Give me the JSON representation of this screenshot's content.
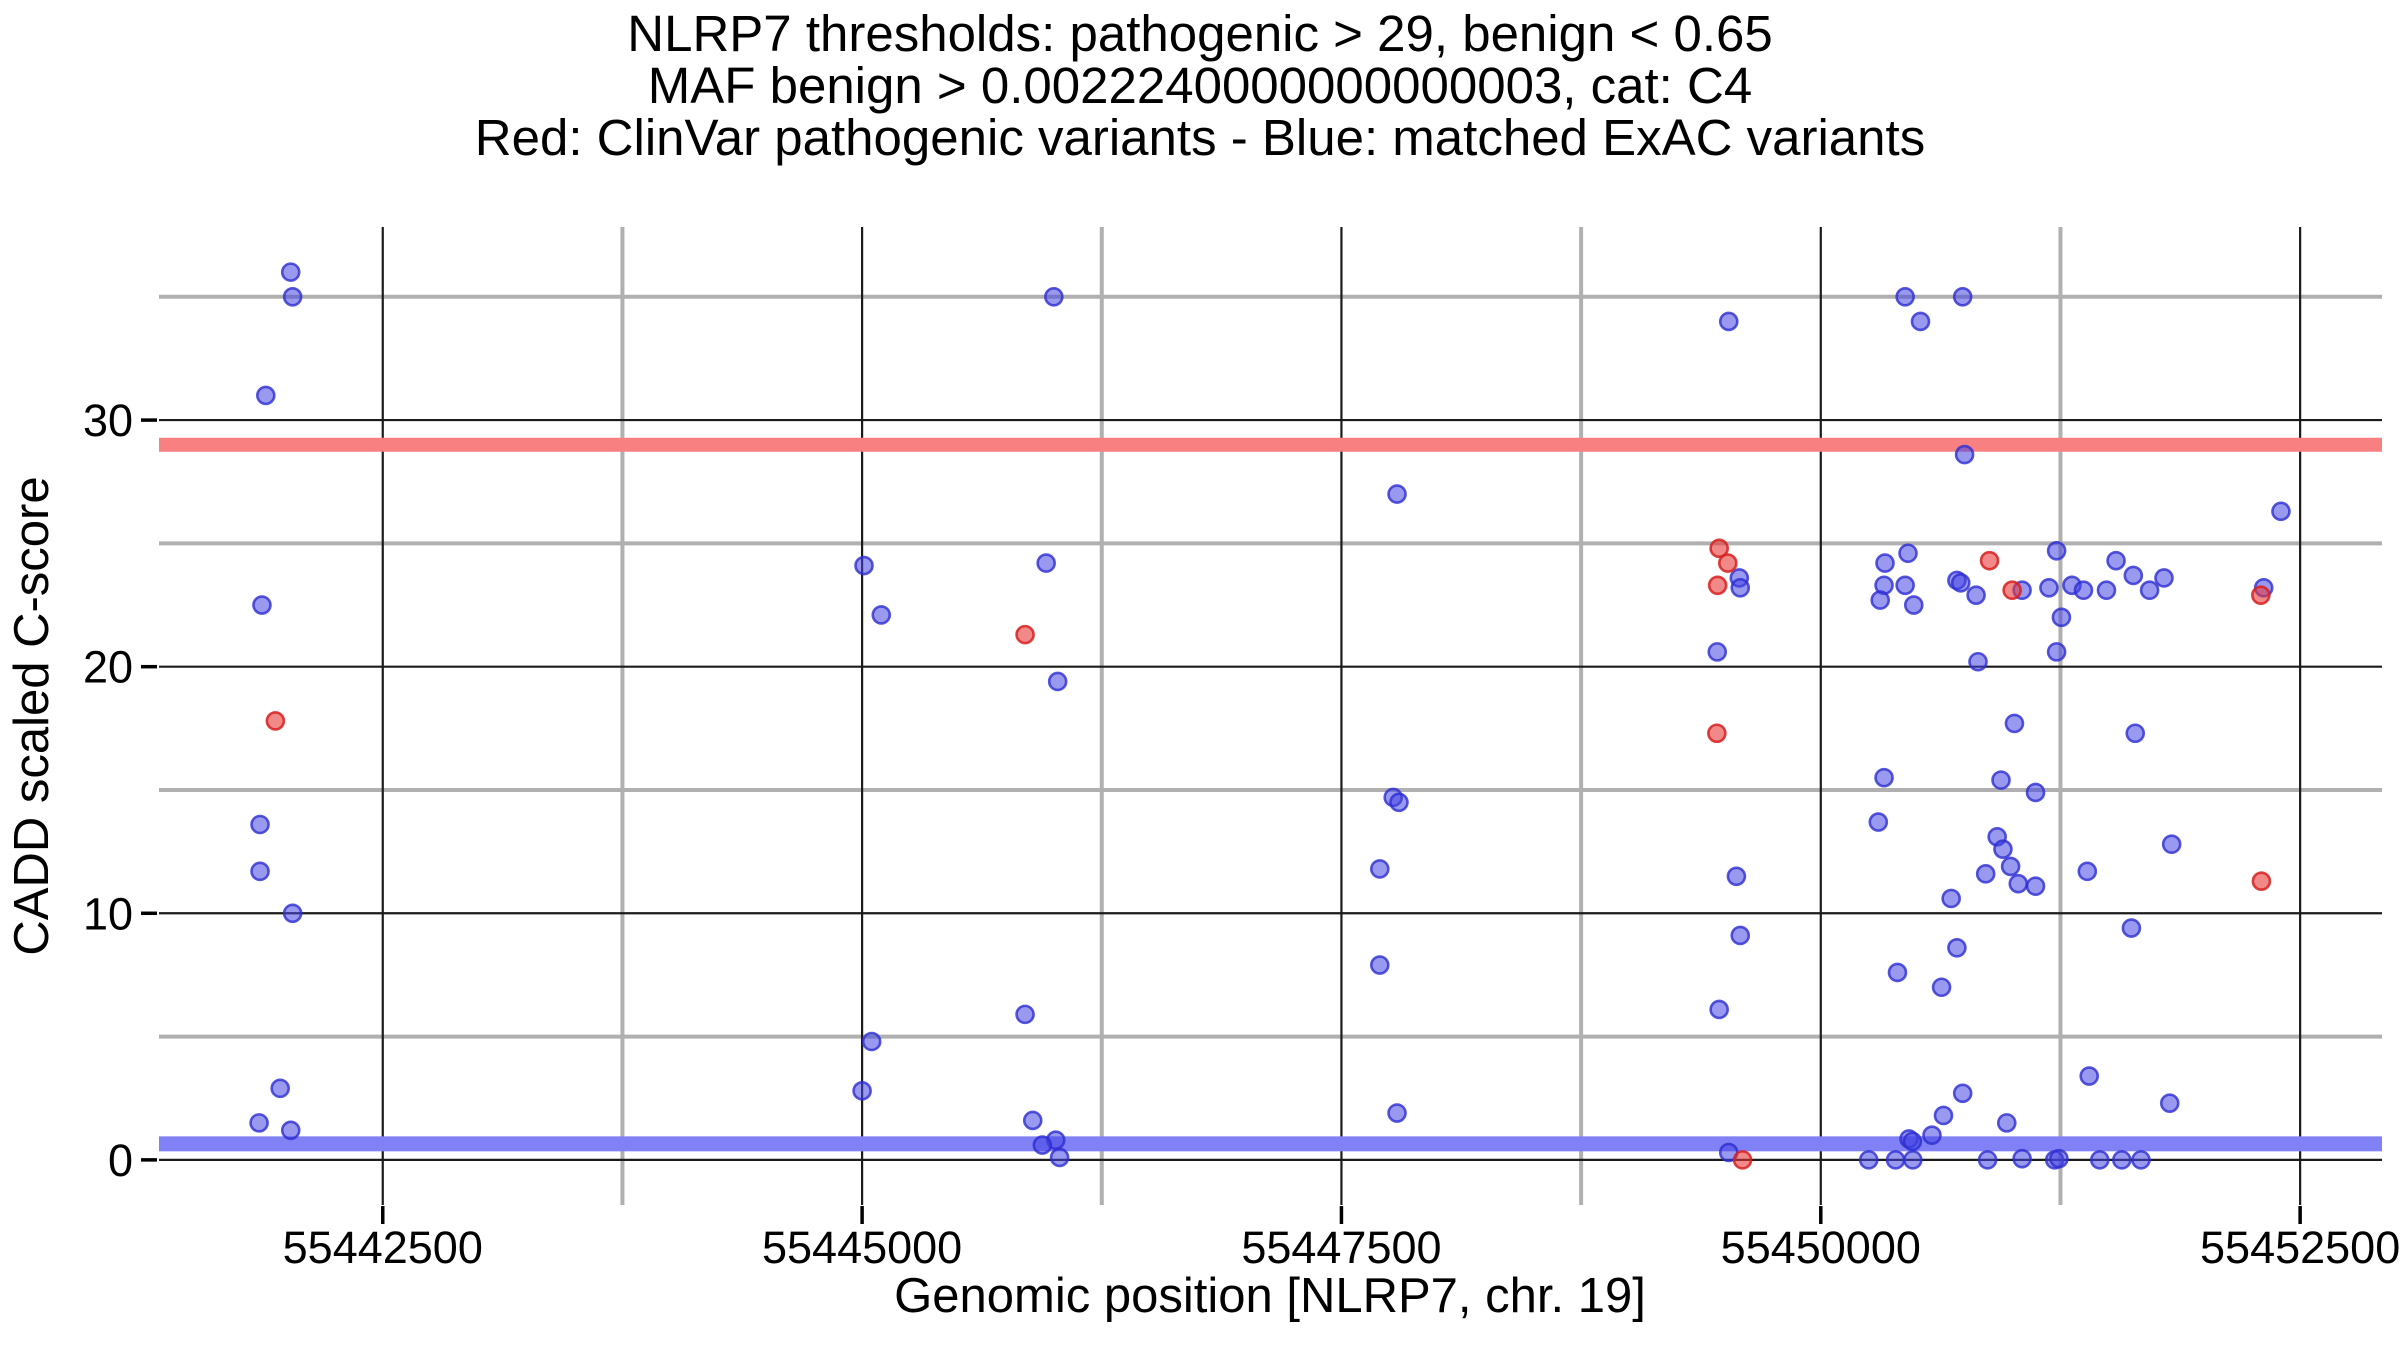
{
  "chart_data": {
    "type": "scatter",
    "title_line1": "NLRP7 thresholds: pathogenic > 29, benign < 0.65",
    "title_line2": "MAF benign > 0.0022240000000000003, cat: C4",
    "title_line3": "Red: ClinVar pathogenic variants - Blue: matched ExAC variants",
    "xlabel": "Genomic position [NLRP7, chr. 19]",
    "ylabel": "CADD scaled C-score",
    "xlim": [
      55441333,
      55452927
    ],
    "ylim": [
      -1.83,
      37.83
    ],
    "x_ticks": [
      55442500,
      55445000,
      55447500,
      55450000,
      55452500
    ],
    "x_minor_ticks": [
      55443750,
      55446250,
      55448750,
      55451250
    ],
    "y_ticks": [
      0,
      10,
      20,
      30
    ],
    "y_minor_ticks": [
      5,
      15,
      25,
      35
    ],
    "grid": true,
    "legend_position": "none",
    "thresholds": {
      "pathogenic_line": 29,
      "benign_line": 0.65
    },
    "colors": {
      "red_band": "#f88080",
      "blue_band": "#8181f6",
      "blue_fill": "rgba(70,70,228,0.55)",
      "blue_stroke": "rgba(45,45,210,0.8)",
      "red_fill": "rgba(232,58,58,0.6)",
      "red_stroke": "rgba(215,32,32,0.85)",
      "major_grid": "#1b1b1b",
      "minor_grid": "#b0b0b0"
    },
    "series": [
      {
        "name": "matched ExAC variants",
        "color": "blue",
        "points": [
          [
            55442020,
            36.0
          ],
          [
            55442030,
            35.0
          ],
          [
            55441890,
            31.0
          ],
          [
            55441870,
            22.5
          ],
          [
            55441860,
            13.6
          ],
          [
            55441860,
            11.7
          ],
          [
            55442030,
            10.0
          ],
          [
            55441965,
            2.9
          ],
          [
            55441855,
            1.5
          ],
          [
            55442020,
            1.2
          ],
          [
            55445010,
            24.1
          ],
          [
            55445960,
            24.2
          ],
          [
            55446000,
            35.0
          ],
          [
            55445100,
            22.1
          ],
          [
            55446020,
            19.4
          ],
          [
            55445850,
            5.9
          ],
          [
            55445050,
            4.8
          ],
          [
            55445000,
            2.8
          ],
          [
            55445890,
            1.6
          ],
          [
            55446010,
            0.8
          ],
          [
            55445940,
            0.6
          ],
          [
            55446030,
            0.1
          ],
          [
            55447790,
            27.0
          ],
          [
            55447770,
            14.7
          ],
          [
            55447800,
            14.5
          ],
          [
            55447700,
            11.8
          ],
          [
            55447700,
            7.9
          ],
          [
            55447790,
            1.9
          ],
          [
            55449520,
            34.0
          ],
          [
            55449575,
            23.6
          ],
          [
            55449580,
            23.2
          ],
          [
            55449460,
            20.6
          ],
          [
            55449560,
            11.5
          ],
          [
            55449580,
            9.1
          ],
          [
            55449470,
            6.1
          ],
          [
            55449520,
            0.3
          ],
          [
            55450440,
            35.0
          ],
          [
            55450740,
            35.0
          ],
          [
            55450520,
            34.0
          ],
          [
            55450750,
            28.6
          ],
          [
            55452400,
            26.3
          ],
          [
            55451230,
            24.7
          ],
          [
            55450455,
            24.6
          ],
          [
            55451540,
            24.3
          ],
          [
            55450335,
            24.2
          ],
          [
            55451630,
            23.7
          ],
          [
            55451790,
            23.6
          ],
          [
            55450710,
            23.5
          ],
          [
            55450730,
            23.4
          ],
          [
            55450330,
            23.3
          ],
          [
            55450440,
            23.3
          ],
          [
            55451310,
            23.3
          ],
          [
            55451190,
            23.2
          ],
          [
            55452310,
            23.2
          ],
          [
            55451050,
            23.1
          ],
          [
            55451370,
            23.1
          ],
          [
            55451490,
            23.1
          ],
          [
            55451715,
            23.1
          ],
          [
            55450810,
            22.9
          ],
          [
            55450310,
            22.7
          ],
          [
            55450485,
            22.5
          ],
          [
            55451255,
            22.0
          ],
          [
            55451230,
            20.6
          ],
          [
            55450820,
            20.2
          ],
          [
            55451010,
            17.7
          ],
          [
            55451640,
            17.3
          ],
          [
            55450330,
            15.5
          ],
          [
            55450940,
            15.4
          ],
          [
            55451120,
            14.9
          ],
          [
            55450300,
            13.7
          ],
          [
            55450920,
            13.1
          ],
          [
            55451830,
            12.8
          ],
          [
            55450950,
            12.6
          ],
          [
            55450990,
            11.9
          ],
          [
            55451390,
            11.7
          ],
          [
            55450860,
            11.6
          ],
          [
            55451030,
            11.2
          ],
          [
            55451120,
            11.1
          ],
          [
            55450680,
            10.6
          ],
          [
            55451620,
            9.4
          ],
          [
            55450710,
            8.6
          ],
          [
            55450400,
            7.6
          ],
          [
            55450630,
            7.0
          ],
          [
            55451400,
            3.4
          ],
          [
            55450740,
            2.7
          ],
          [
            55451820,
            2.3
          ],
          [
            55450640,
            1.8
          ],
          [
            55450970,
            1.5
          ],
          [
            55450580,
            1.0
          ],
          [
            55450460,
            0.85
          ],
          [
            55450478,
            0.75
          ],
          [
            55450250,
            0.0
          ],
          [
            55450390,
            0.0
          ],
          [
            55450480,
            0.0
          ],
          [
            55450870,
            0.0
          ],
          [
            55451050,
            0.05
          ],
          [
            55451220,
            0.0
          ],
          [
            55451242,
            0.05
          ],
          [
            55451455,
            0.0
          ],
          [
            55451570,
            0.0
          ],
          [
            55451670,
            0.0
          ]
        ]
      },
      {
        "name": "ClinVar pathogenic variants",
        "color": "red",
        "points": [
          [
            55441940,
            17.8
          ],
          [
            55445850,
            21.3
          ],
          [
            55449470,
            24.8
          ],
          [
            55449515,
            24.2
          ],
          [
            55449462,
            23.3
          ],
          [
            55449458,
            17.3
          ],
          [
            55449592,
            0.0
          ],
          [
            55450880,
            24.3
          ],
          [
            55450998,
            23.1
          ],
          [
            55452295,
            22.9
          ],
          [
            55452298,
            11.3
          ]
        ]
      }
    ]
  }
}
